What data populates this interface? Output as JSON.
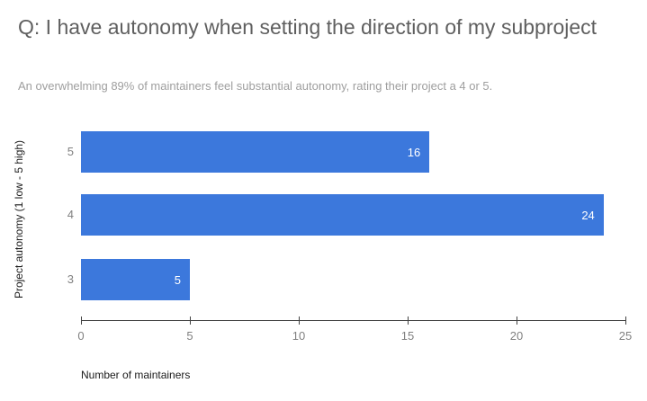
{
  "header": {
    "title": "Q: I have autonomy when setting the direction of my subproject",
    "subtitle": "An overwhelming 89% of maintainers feel substantial autonomy, rating their project a 4 or 5."
  },
  "chart_data": {
    "type": "bar",
    "orientation": "horizontal",
    "title": "Q: I have autonomy when setting the direction of my subproject",
    "subtitle": "An overwhelming 89% of maintainers feel substantial autonomy, rating their project a 4 or 5.",
    "categories": [
      "5",
      "4",
      "3"
    ],
    "values": [
      16,
      24,
      5
    ],
    "xlabel": "Number of maintainers",
    "ylabel": "Project autonomy (1 low - 5 high)",
    "xlim": [
      0,
      25
    ],
    "xticks": [
      0,
      5,
      10,
      15,
      20,
      25
    ],
    "grid": false,
    "legend": "none",
    "colors": {
      "bar": "#3c78dc",
      "bar_value_label": "#ffffff",
      "axis_line": "#424242",
      "tick_label": "#808080",
      "category_label": "#808080",
      "title": "#5f5f5f",
      "subtitle": "#9e9e9e",
      "axis_title": "#1a1a1a"
    }
  }
}
